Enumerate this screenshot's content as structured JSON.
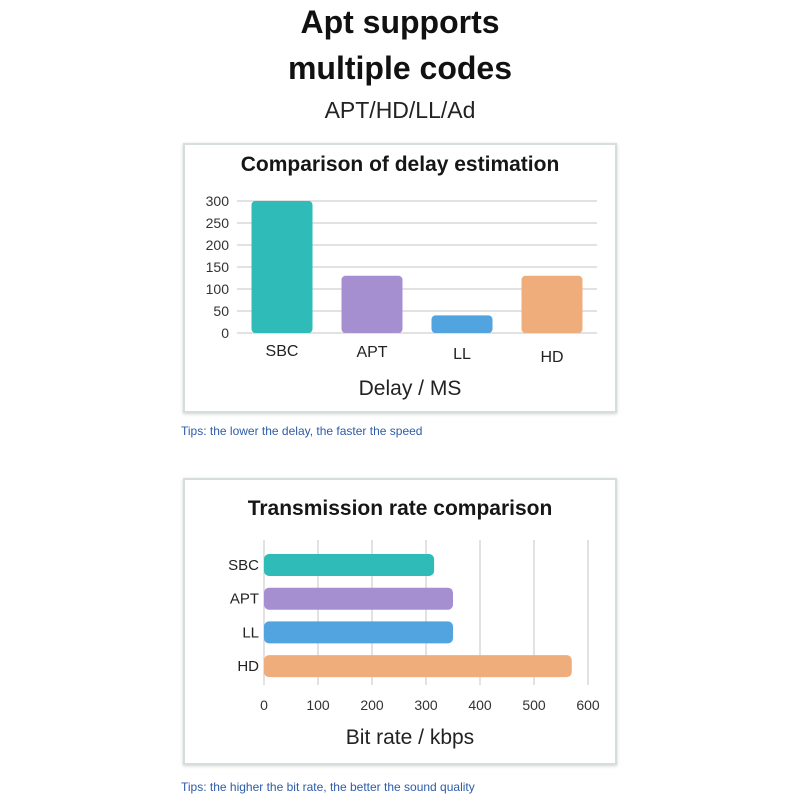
{
  "header": {
    "title_line1": "Apt supports",
    "title_line2": "multiple codes",
    "subtitle": "APT/HD/LL/Ad"
  },
  "tips": {
    "delay": "Tips: the lower the delay, the faster the speed",
    "bitrate": "Tips: the higher the bit rate, the better the sound quality"
  },
  "colors": {
    "SBC": "#2fbcb8",
    "APT": "#a58fd0",
    "LL": "#52a4e0",
    "HD": "#f0ad7c",
    "tips": "#2d5ca8"
  },
  "chart_data": [
    {
      "type": "bar",
      "orientation": "vertical",
      "title": "Comparison of delay estimation",
      "categories": [
        "SBC",
        "APT",
        "LL",
        "HD"
      ],
      "values": [
        300,
        130,
        40,
        130
      ],
      "xlabel": "Delay / MS",
      "ylim": [
        0,
        300
      ],
      "yticks": [
        0,
        50,
        100,
        150,
        200,
        250,
        300
      ],
      "grid": true
    },
    {
      "type": "bar",
      "orientation": "horizontal",
      "title": "Transmission rate comparison",
      "categories": [
        "SBC",
        "APT",
        "LL",
        "HD"
      ],
      "values": [
        315,
        350,
        350,
        570
      ],
      "xlabel": "Bit rate / kbps",
      "xlim": [
        0,
        600
      ],
      "xticks": [
        0,
        100,
        200,
        300,
        400,
        500,
        600
      ],
      "grid": true
    }
  ]
}
